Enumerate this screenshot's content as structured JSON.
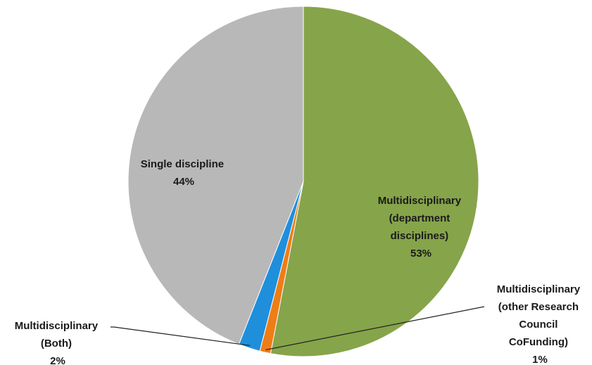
{
  "chart_data": {
    "type": "pie",
    "slices": [
      {
        "name": "Multidisciplinary (department disciplines)",
        "label_lines": [
          "Multidisciplinary",
          "(department",
          "disciplines)"
        ],
        "percent_label": "53%",
        "value": 53,
        "color": "#86a44a"
      },
      {
        "name": "Multidisciplinary (other Research Council CoFunding)",
        "label_lines": [
          "Multidisciplinary",
          "(other Research",
          "Council",
          "CoFunding)"
        ],
        "percent_label": "1%",
        "value": 1,
        "color": "#ef7d16"
      },
      {
        "name": "Multidisciplinary (Both)",
        "label_lines": [
          "Multidisciplinary",
          "(Both)"
        ],
        "percent_label": "2%",
        "value": 2,
        "color": "#1f8fdc"
      },
      {
        "name": "Single discipline",
        "label_lines": [
          "Single discipline"
        ],
        "percent_label": "44%",
        "value": 44,
        "color": "#b8b8b8"
      }
    ],
    "legend": "none"
  }
}
